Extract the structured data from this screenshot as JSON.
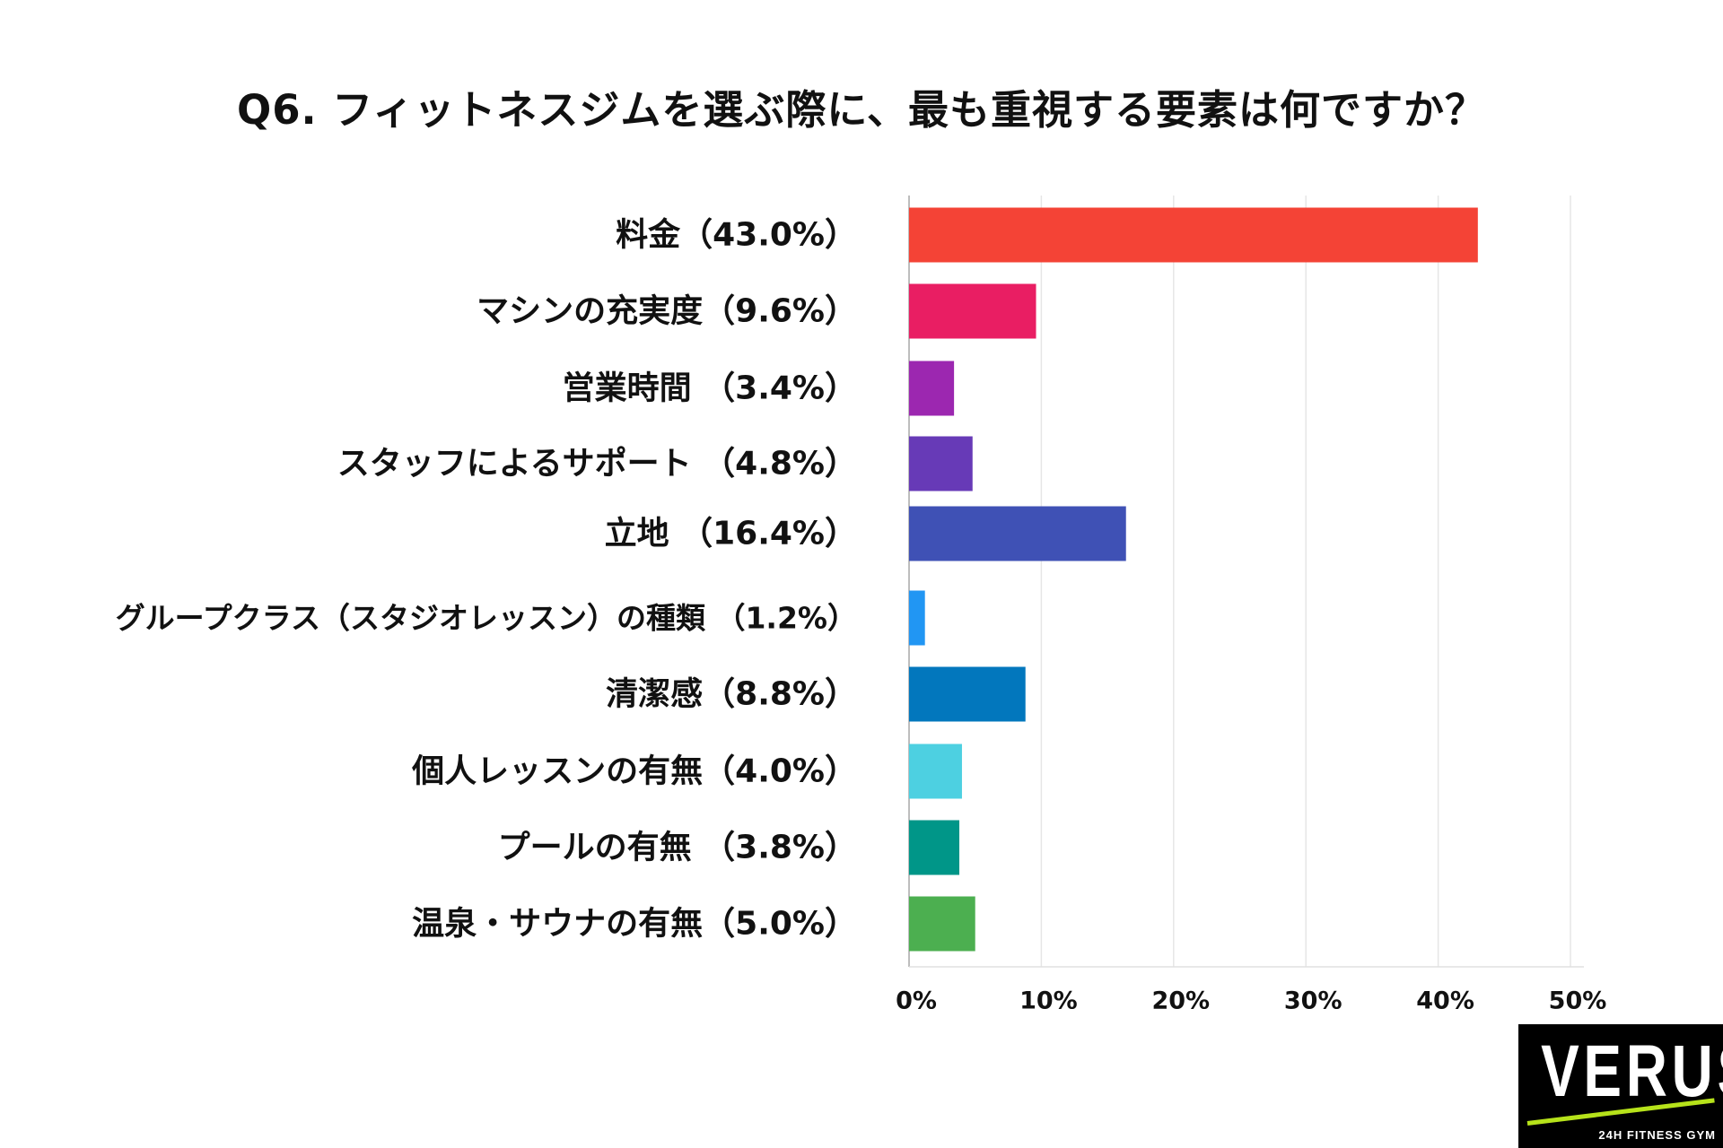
{
  "chart_data": {
    "type": "bar",
    "orientation": "horizontal",
    "title": "Q6. フィットネスジムを選ぶ際に、最も重視する要素は何ですか？",
    "categories": [
      "料金（43.0%）",
      "マシンの充実度（9.6%）",
      "営業時間 （3.4%）",
      "スタッフによるサポート （4.8%）",
      "立地 （16.4%）",
      "グループクラス（スタジオレッスン）の種類 （1.2%）",
      "清潔感（8.8%）",
      "個人レッスンの有無（4.0%）",
      "プールの有無 （3.8%）",
      "温泉・サウナの有無（5.0%）"
    ],
    "values": [
      43.0,
      9.6,
      3.4,
      4.8,
      16.4,
      1.2,
      8.8,
      4.0,
      3.8,
      5.0
    ],
    "colors": [
      "#f44336",
      "#e91e63",
      "#9c27b0",
      "#673ab7",
      "#3f51b5",
      "#2196f3",
      "#0277bd",
      "#4dd0e1",
      "#009688",
      "#4caf50"
    ],
    "xlim": [
      0,
      50
    ],
    "xticks": [
      0,
      10,
      20,
      30,
      40,
      50
    ],
    "tick_labels": [
      "0%",
      "10%",
      "20%",
      "30%",
      "40%",
      "50%"
    ],
    "xlabel": "",
    "ylabel": "",
    "grid": true,
    "legend": "none"
  },
  "brand": {
    "name": "VERUS",
    "tagline": "24H FITNESS GYM"
  }
}
